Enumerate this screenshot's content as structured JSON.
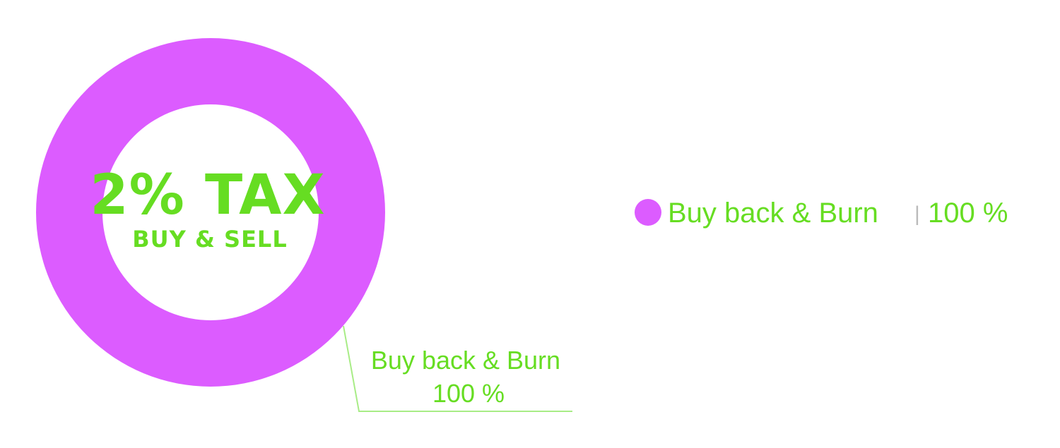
{
  "chart_data": {
    "type": "pie",
    "donut": true,
    "center_title": "2% TAX",
    "center_subtitle": "BUY & SELL",
    "slices": [
      {
        "label": "Buy back & Burn",
        "value": 100,
        "value_text": "100 %",
        "color": "#dc5cff"
      }
    ],
    "label_color": "#66dd22",
    "legend": {
      "placement": "right",
      "separator": "|"
    }
  }
}
